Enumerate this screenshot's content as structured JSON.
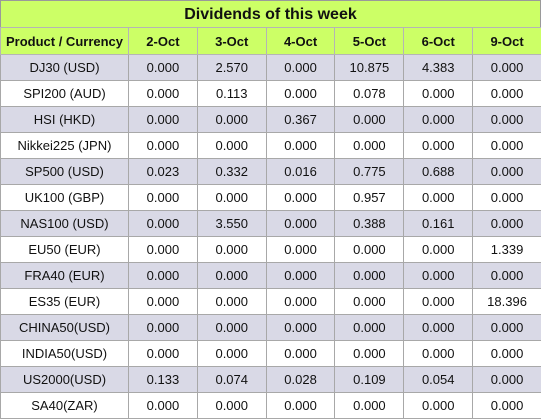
{
  "title": "Dividends of this week",
  "header": {
    "first": "Product / Currency",
    "dates": [
      "2-Oct",
      "3-Oct",
      "4-Oct",
      "5-Oct",
      "6-Oct",
      "9-Oct"
    ]
  },
  "rows": [
    {
      "name": "DJ30 (USD)",
      "values": [
        "0.000",
        "2.570",
        "0.000",
        "10.875",
        "4.383",
        "0.000"
      ]
    },
    {
      "name": "SPI200 (AUD)",
      "values": [
        "0.000",
        "0.113",
        "0.000",
        "0.078",
        "0.000",
        "0.000"
      ]
    },
    {
      "name": "HSI (HKD)",
      "values": [
        "0.000",
        "0.000",
        "0.367",
        "0.000",
        "0.000",
        "0.000"
      ]
    },
    {
      "name": "Nikkei225 (JPN)",
      "values": [
        "0.000",
        "0.000",
        "0.000",
        "0.000",
        "0.000",
        "0.000"
      ]
    },
    {
      "name": "SP500 (USD)",
      "values": [
        "0.023",
        "0.332",
        "0.016",
        "0.775",
        "0.688",
        "0.000"
      ]
    },
    {
      "name": "UK100 (GBP)",
      "values": [
        "0.000",
        "0.000",
        "0.000",
        "0.957",
        "0.000",
        "0.000"
      ]
    },
    {
      "name": "NAS100 (USD)",
      "values": [
        "0.000",
        "3.550",
        "0.000",
        "0.388",
        "0.161",
        "0.000"
      ]
    },
    {
      "name": "EU50 (EUR)",
      "values": [
        "0.000",
        "0.000",
        "0.000",
        "0.000",
        "0.000",
        "1.339"
      ]
    },
    {
      "name": "FRA40 (EUR)",
      "values": [
        "0.000",
        "0.000",
        "0.000",
        "0.000",
        "0.000",
        "0.000"
      ]
    },
    {
      "name": "ES35 (EUR)",
      "values": [
        "0.000",
        "0.000",
        "0.000",
        "0.000",
        "0.000",
        "18.396"
      ]
    },
    {
      "name": "CHINA50(USD)",
      "values": [
        "0.000",
        "0.000",
        "0.000",
        "0.000",
        "0.000",
        "0.000"
      ]
    },
    {
      "name": "INDIA50(USD)",
      "values": [
        "0.000",
        "0.000",
        "0.000",
        "0.000",
        "0.000",
        "0.000"
      ]
    },
    {
      "name": "US2000(USD)",
      "values": [
        "0.133",
        "0.074",
        "0.028",
        "0.109",
        "0.054",
        "0.000"
      ]
    },
    {
      "name": "SA40(ZAR)",
      "values": [
        "0.000",
        "0.000",
        "0.000",
        "0.000",
        "0.000",
        "0.000"
      ]
    }
  ],
  "colors": {
    "header_bg": "#ccff66",
    "stripe_bg": "#d9d9e6",
    "row_bg": "#ffffff"
  }
}
